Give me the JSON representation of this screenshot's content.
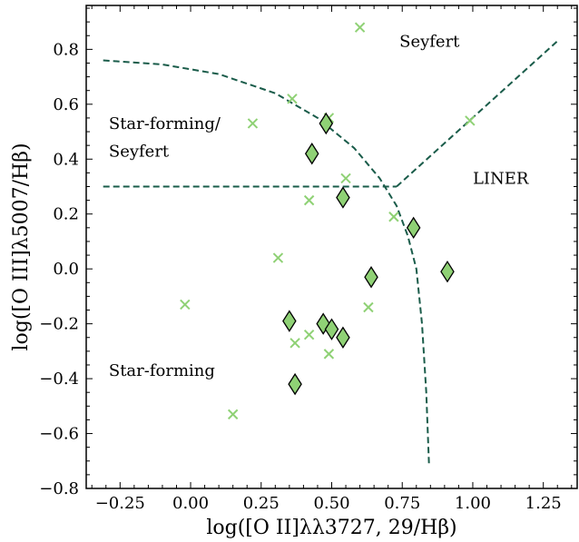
{
  "chart_data": {
    "type": "scatter",
    "title": "",
    "xlabel": "log([O II]λλ3727, 29/Hβ)",
    "ylabel": "log([O III]λ5007/Hβ)",
    "xlim": [
      -0.37,
      1.37
    ],
    "ylim": [
      -0.8,
      0.96
    ],
    "x_ticks": [
      -0.25,
      0.0,
      0.25,
      0.5,
      0.75,
      1.0,
      1.25
    ],
    "x_tick_labels": [
      "−0.25",
      "0.00",
      "0.25",
      "0.50",
      "0.75",
      "1.00",
      "1.25"
    ],
    "y_ticks": [
      -0.8,
      -0.6,
      -0.4,
      -0.2,
      0.0,
      0.2,
      0.4,
      0.6,
      0.8
    ],
    "y_tick_labels": [
      "−0.8",
      "−0.6",
      "−0.4",
      "−0.2",
      "0.0",
      "0.2",
      "0.4",
      "0.6",
      "0.8"
    ],
    "grid": false,
    "colors": {
      "diamond_fill": "#8fd175",
      "cross": "#8fd175",
      "demarcation": "#1a5c4a"
    },
    "series": [
      {
        "marker": "x",
        "points": [
          [
            0.6,
            0.88
          ],
          [
            0.36,
            0.62
          ],
          [
            0.22,
            0.53
          ],
          [
            0.49,
            0.55
          ],
          [
            0.99,
            0.54
          ],
          [
            0.55,
            0.33
          ],
          [
            0.42,
            0.25
          ],
          [
            0.72,
            0.19
          ],
          [
            0.31,
            0.04
          ],
          [
            -0.02,
            -0.13
          ],
          [
            0.63,
            -0.14
          ],
          [
            0.42,
            -0.24
          ],
          [
            0.37,
            -0.27
          ],
          [
            0.49,
            -0.31
          ],
          [
            0.15,
            -0.53
          ]
        ]
      },
      {
        "marker": "diamond",
        "points": [
          [
            0.48,
            0.53
          ],
          [
            0.43,
            0.42
          ],
          [
            0.54,
            0.26
          ],
          [
            0.79,
            0.15
          ],
          [
            0.64,
            -0.03
          ],
          [
            0.91,
            -0.01
          ],
          [
            0.35,
            -0.19
          ],
          [
            0.47,
            -0.2
          ],
          [
            0.5,
            -0.22
          ],
          [
            0.54,
            -0.25
          ],
          [
            0.37,
            -0.42
          ]
        ]
      }
    ],
    "annotations": [
      {
        "text": "Seyfert",
        "x": 0.74,
        "y": 0.81
      },
      {
        "text": "Star-forming/",
        "x": -0.29,
        "y": 0.51
      },
      {
        "text": "Seyfert",
        "x": -0.29,
        "y": 0.41
      },
      {
        "text": "LINER",
        "x": 1.0,
        "y": 0.31
      },
      {
        "text": "Star-forming",
        "x": -0.29,
        "y": -0.39
      }
    ],
    "demarcation_lines": [
      {
        "style": "dashed",
        "points": [
          [
            -0.31,
            0.76
          ],
          [
            -0.1,
            0.745
          ],
          [
            0.1,
            0.71
          ],
          [
            0.3,
            0.64
          ],
          [
            0.45,
            0.55
          ],
          [
            0.58,
            0.44
          ],
          [
            0.67,
            0.33
          ],
          [
            0.73,
            0.23
          ],
          [
            0.77,
            0.12
          ],
          [
            0.8,
            0.0
          ],
          [
            0.82,
            -0.2
          ],
          [
            0.835,
            -0.45
          ],
          [
            0.845,
            -0.72
          ]
        ]
      },
      {
        "style": "dashed",
        "points": [
          [
            -0.31,
            0.3
          ],
          [
            0.73,
            0.3
          ]
        ]
      },
      {
        "style": "dashed",
        "points": [
          [
            0.73,
            0.3
          ],
          [
            1.3,
            0.83
          ]
        ]
      }
    ]
  }
}
